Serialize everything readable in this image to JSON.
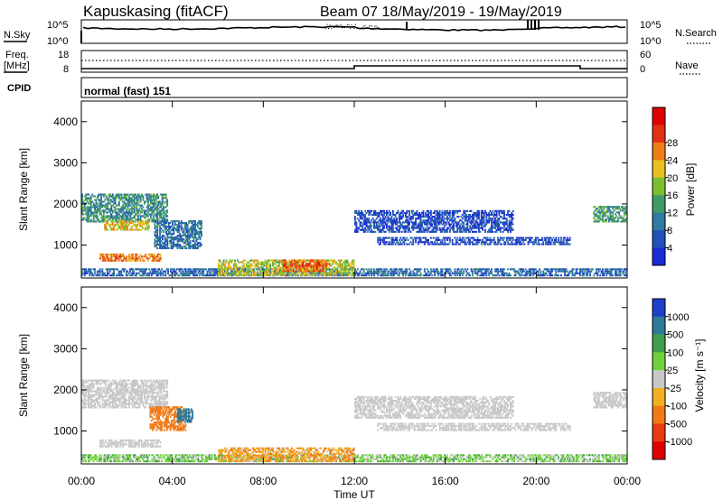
{
  "header": {
    "station": "Kapuskasing (fitACF)",
    "beam_date": "Beam 07  18/May/2019 - 19/May/2019"
  },
  "top_panel": {
    "left_label": "N.Sky",
    "right_label": "N.Search",
    "left_ticks": [
      "10^5",
      "10^0"
    ],
    "right_ticks": [
      "10^5",
      "10^0"
    ]
  },
  "freq_panel": {
    "left_label_1": "Freq.",
    "left_label_2": "[MHz]",
    "left_ticks": [
      "18",
      "8"
    ],
    "right_ticks": [
      "60",
      "0"
    ],
    "right_label": "Nave"
  },
  "cpid": {
    "label": "CPID",
    "value": "normal (fast) 151"
  },
  "chart_data": [
    {
      "type": "heatmap",
      "title": "",
      "quantity": "Power",
      "xlabel": "",
      "ylabel": "Slant Range [km]",
      "x_ticks": [
        "00:00",
        "04:00",
        "08:00",
        "12:00",
        "16:00",
        "20:00",
        "00:00"
      ],
      "y_ticks": [
        "1000",
        "2000",
        "3000",
        "4000"
      ],
      "ylim": [
        200,
        4500
      ],
      "colorbar": {
        "label": "Power [dB]",
        "ticks": [
          "4",
          "8",
          "12",
          "16",
          "20",
          "24",
          "28"
        ],
        "colors": [
          "#1a2bd8",
          "#2250b8",
          "#2e7aa0",
          "#3f9a66",
          "#7cbf2e",
          "#e8c022",
          "#ee7d16",
          "#e23014",
          "#e00000"
        ]
      },
      "regions": [
        {
          "t0": 0.0,
          "t1": 3.8,
          "r0": 1550,
          "r1": 2250,
          "v": 14
        },
        {
          "t0": 1.0,
          "t1": 3.0,
          "r0": 1350,
          "r1": 1600,
          "v": 24
        },
        {
          "t0": 0.8,
          "t1": 3.5,
          "r0": 600,
          "r1": 800,
          "v": 28
        },
        {
          "t0": 3.2,
          "t1": 5.3,
          "r0": 900,
          "r1": 1600,
          "v": 11
        },
        {
          "t0": 0.0,
          "t1": 24.0,
          "r0": 240,
          "r1": 440,
          "v": 10
        },
        {
          "t0": 6.0,
          "t1": 12.0,
          "r0": 250,
          "r1": 650,
          "v": 22
        },
        {
          "t0": 8.8,
          "t1": 10.8,
          "r0": 350,
          "r1": 650,
          "v": 30
        },
        {
          "t0": 12.0,
          "t1": 19.0,
          "r0": 1300,
          "r1": 1850,
          "v": 7
        },
        {
          "t0": 13.0,
          "t1": 21.5,
          "r0": 1000,
          "r1": 1200,
          "v": 7
        },
        {
          "t0": 22.5,
          "t1": 24.0,
          "r0": 1550,
          "r1": 1950,
          "v": 16
        }
      ]
    },
    {
      "type": "heatmap",
      "title": "",
      "quantity": "Velocity",
      "xlabel": "Time UT",
      "ylabel": "Slant Range [km]",
      "x_ticks": [
        "00:00",
        "04:00",
        "08:00",
        "12:00",
        "16:00",
        "20:00",
        "00:00"
      ],
      "y_ticks": [
        "1000",
        "2000",
        "3000",
        "4000"
      ],
      "ylim": [
        200,
        4500
      ],
      "colorbar": {
        "label": "Velocity [m s⁻¹]",
        "ticks": [
          "1000",
          "500",
          "100",
          "25",
          "-25",
          "-100",
          "-500",
          "-1000"
        ],
        "colors": [
          "#1f3fc9",
          "#2e7a9a",
          "#3f9e4a",
          "#6fd23a",
          "#c8c8c8",
          "#f0b020",
          "#f07a18",
          "#e83c10",
          "#e00000"
        ]
      },
      "regions": [
        {
          "t0": 0.0,
          "t1": 3.8,
          "r0": 1550,
          "r1": 2250,
          "v": 0
        },
        {
          "t0": 0.8,
          "t1": 3.5,
          "r0": 600,
          "r1": 800,
          "v": 0
        },
        {
          "t0": 3.0,
          "t1": 4.6,
          "r0": 1000,
          "r1": 1600,
          "v": -200
        },
        {
          "t0": 4.2,
          "t1": 4.9,
          "r0": 1200,
          "r1": 1550,
          "v": 600
        },
        {
          "t0": 0.0,
          "t1": 24.0,
          "r0": 240,
          "r1": 440,
          "v": 60
        },
        {
          "t0": 6.0,
          "t1": 12.0,
          "r0": 250,
          "r1": 600,
          "v": -80
        },
        {
          "t0": 12.0,
          "t1": 19.0,
          "r0": 1300,
          "r1": 1850,
          "v": 0
        },
        {
          "t0": 13.0,
          "t1": 21.5,
          "r0": 1000,
          "r1": 1200,
          "v": 0
        },
        {
          "t0": 22.5,
          "t1": 24.0,
          "r0": 1550,
          "r1": 1950,
          "v": 0
        }
      ]
    }
  ]
}
